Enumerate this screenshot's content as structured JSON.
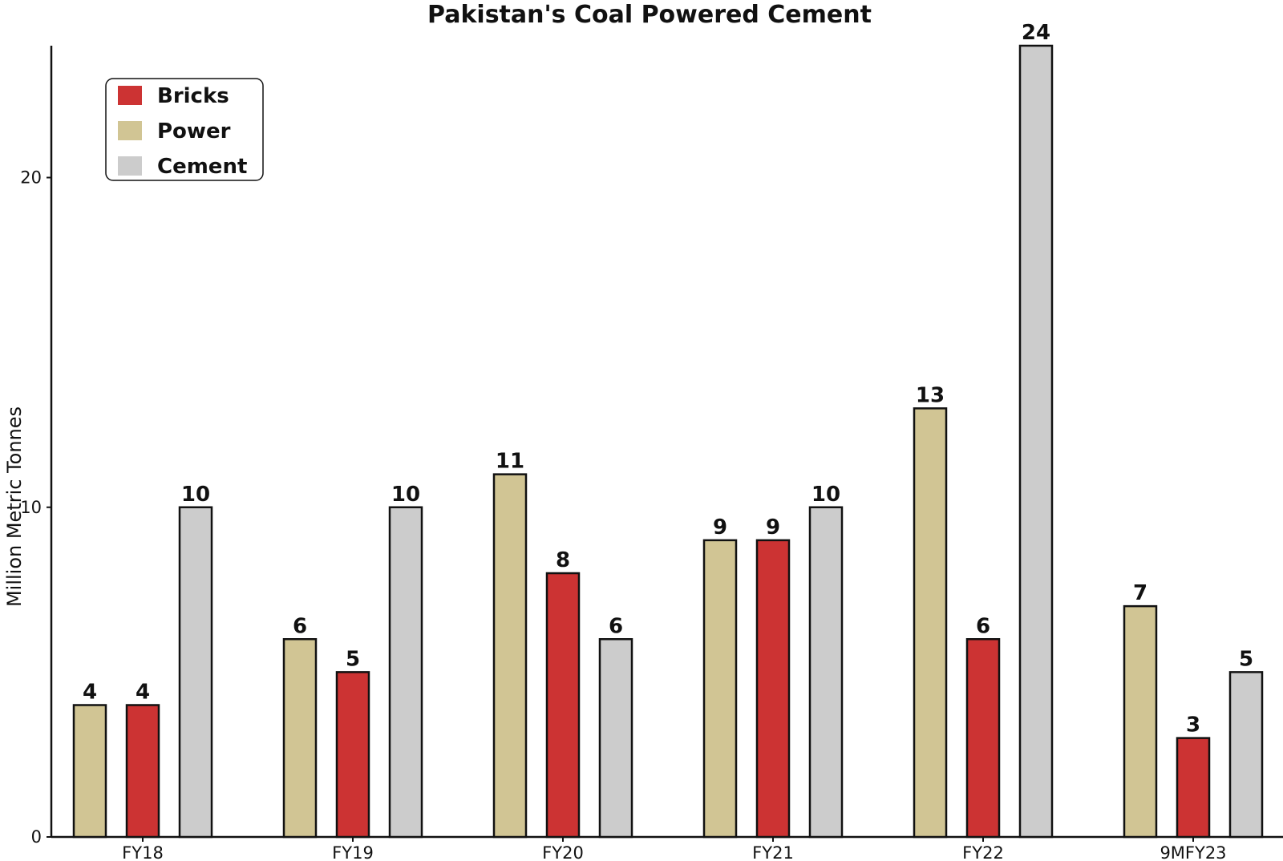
{
  "chart_data": {
    "type": "bar",
    "title": "Pakistan's Coal Powered Cement",
    "xlabel": "",
    "ylabel": "Million Metric Tonnes",
    "ylim": [
      0,
      24
    ],
    "yticks": [
      0,
      10,
      20
    ],
    "categories": [
      "FY18",
      "FY19",
      "FY20",
      "FY21",
      "FY22",
      "9MFY23"
    ],
    "series": [
      {
        "name": "Power",
        "color": "#d1c594",
        "values": [
          4,
          6,
          11,
          9,
          13,
          7
        ]
      },
      {
        "name": "Bricks",
        "color": "#cc3333",
        "values": [
          4,
          5,
          8,
          9,
          6,
          3
        ]
      },
      {
        "name": "Cement",
        "color": "#cccccc",
        "values": [
          10,
          10,
          6,
          10,
          24,
          5
        ]
      }
    ],
    "legend": {
      "placement": "top-left",
      "order": [
        "Bricks",
        "Power",
        "Cement"
      ]
    },
    "data_labels": true,
    "grid": false
  }
}
